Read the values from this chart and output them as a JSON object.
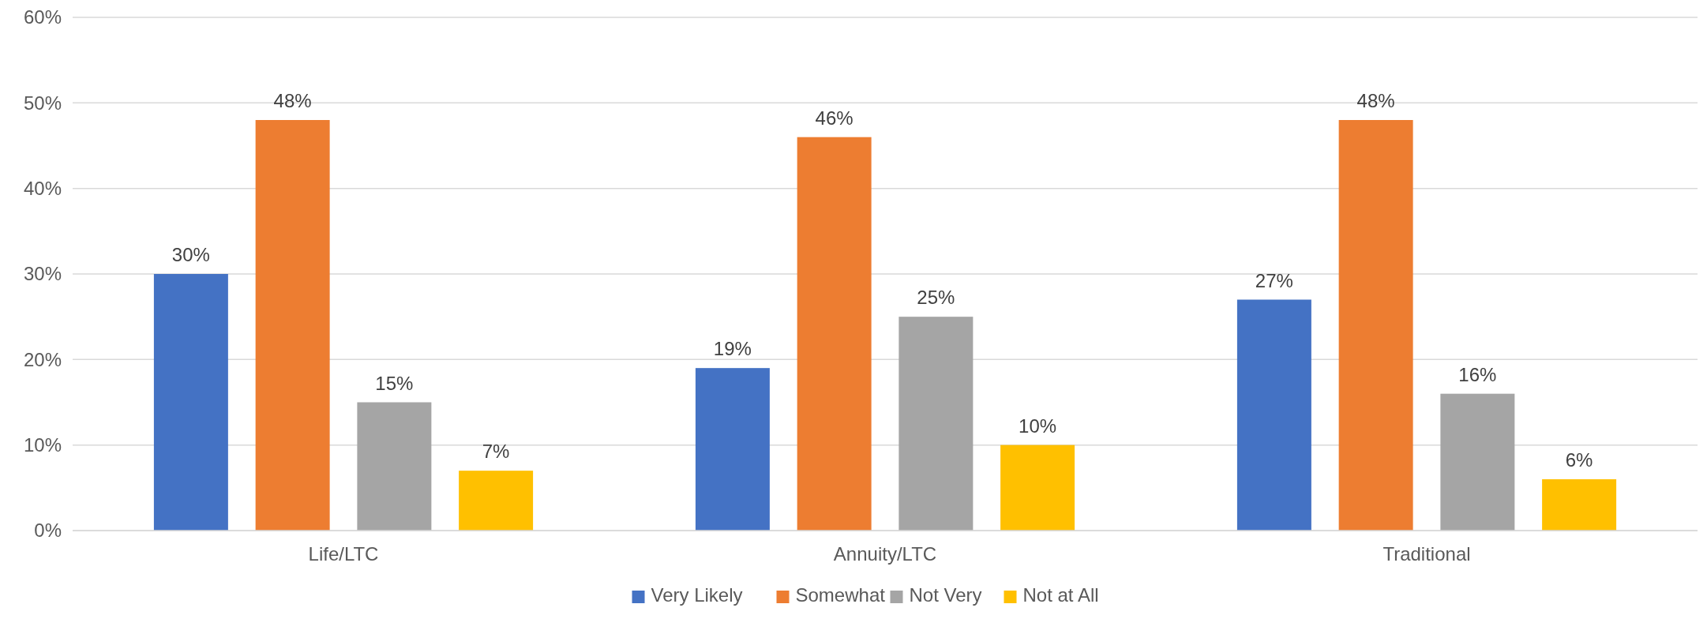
{
  "chart_data": {
    "type": "bar",
    "categories": [
      "Life/LTC",
      "Annuity/LTC",
      "Traditional"
    ],
    "series": [
      {
        "name": "Very Likely",
        "color": "#4472c4",
        "values": [
          30,
          19,
          27
        ],
        "value_labels": [
          "30%",
          "19%",
          "27%"
        ]
      },
      {
        "name": "Somewhat",
        "color": "#ed7d31",
        "values": [
          48,
          46,
          48
        ],
        "value_labels": [
          "48%",
          "46%",
          "48%"
        ]
      },
      {
        "name": "Not Very",
        "color": "#a5a5a5",
        "values": [
          15,
          25,
          16
        ],
        "value_labels": [
          "15%",
          "25%",
          "16%"
        ]
      },
      {
        "name": "Not at All",
        "color": "#ffc000",
        "values": [
          7,
          10,
          6
        ],
        "value_labels": [
          "7%",
          "10%",
          "6%"
        ]
      }
    ],
    "ylim": [
      0,
      60
    ],
    "yticks": [
      {
        "value": 0,
        "label": "0%"
      },
      {
        "value": 10,
        "label": "10%"
      },
      {
        "value": 20,
        "label": "20%"
      },
      {
        "value": 30,
        "label": "30%"
      },
      {
        "value": 40,
        "label": "40%"
      },
      {
        "value": 50,
        "label": "50%"
      },
      {
        "value": 60,
        "label": "60%"
      }
    ],
    "grid": "y",
    "legend": "bottom"
  }
}
